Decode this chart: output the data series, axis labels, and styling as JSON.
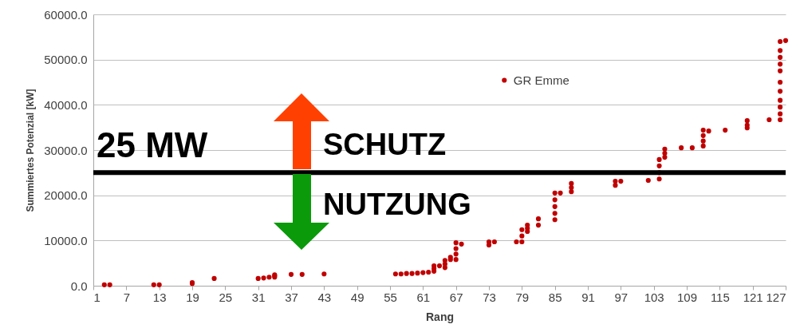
{
  "chart_data": {
    "type": "scatter",
    "xlabel": "Rang",
    "ylabel": "Summiertes Potenzial [kW]",
    "xlim": [
      1,
      127
    ],
    "xticks": [
      1,
      7,
      13,
      19,
      25,
      31,
      37,
      43,
      49,
      55,
      61,
      67,
      73,
      79,
      85,
      91,
      97,
      103,
      109,
      115,
      121,
      127
    ],
    "ylim": [
      0,
      60000
    ],
    "yticks": [
      {
        "value": 0,
        "label": "0.0"
      },
      {
        "value": 10000,
        "label": "10000.0"
      },
      {
        "value": 20000,
        "label": "20000.0"
      },
      {
        "value": 30000,
        "label": "30000.0"
      },
      {
        "value": 40000,
        "label": "40000.0"
      },
      {
        "value": 50000,
        "label": "50000.0"
      },
      {
        "value": 60000,
        "label": "60000.0"
      }
    ],
    "grid": "y",
    "legend": "top",
    "marker": "circle",
    "ref_lines": [
      {
        "axis": "y",
        "value": 25000,
        "label": "25 MW",
        "color": "#000000"
      }
    ],
    "annotations": [
      "SCHUTZ",
      "NUTZUNG"
    ],
    "series": [
      {
        "name": "GR Emme",
        "color": "#c00000",
        "x": [
          3,
          4,
          12,
          13,
          19,
          19,
          23,
          31,
          32,
          33,
          34,
          34,
          34,
          37,
          39,
          43,
          56,
          57,
          58,
          59,
          60,
          61,
          62,
          63,
          63,
          63,
          64,
          65,
          65,
          65,
          66,
          66,
          67,
          67,
          67,
          67,
          68,
          73,
          73,
          74,
          78,
          79,
          79,
          79,
          80,
          80,
          80,
          82,
          82,
          85,
          85,
          85,
          85,
          85,
          86,
          88,
          88,
          88,
          96,
          96,
          97,
          102,
          104,
          104,
          104,
          104,
          105,
          105,
          105,
          108,
          110,
          112,
          112,
          112,
          112,
          113,
          116,
          120,
          120,
          120,
          124,
          126,
          126,
          126,
          126,
          126,
          126,
          126,
          126,
          126,
          126,
          126,
          127
        ],
        "values": [
          200,
          200,
          200,
          200,
          500,
          700,
          1600,
          1600,
          1700,
          1900,
          1900,
          2200,
          2400,
          2500,
          2500,
          2600,
          2600,
          2600,
          2700,
          2700,
          2800,
          2900,
          3000,
          3200,
          3800,
          4400,
          4400,
          4000,
          4800,
          5600,
          5800,
          6300,
          5800,
          7000,
          8200,
          9500,
          9200,
          9000,
          9700,
          9700,
          9700,
          9700,
          11000,
          12400,
          12000,
          12700,
          13400,
          13400,
          14800,
          14600,
          16000,
          17500,
          19000,
          20500,
          20500,
          20800,
          21700,
          22600,
          22200,
          23100,
          23100,
          23300,
          23600,
          25000,
          26500,
          27900,
          28400,
          29300,
          30200,
          30500,
          30500,
          30900,
          32000,
          33200,
          34400,
          34200,
          34400,
          34900,
          35500,
          36500,
          36700,
          36700,
          38000,
          39500,
          41000,
          43000,
          45000,
          47500,
          49000,
          50500,
          52000,
          54000,
          54200
        ]
      }
    ]
  }
}
